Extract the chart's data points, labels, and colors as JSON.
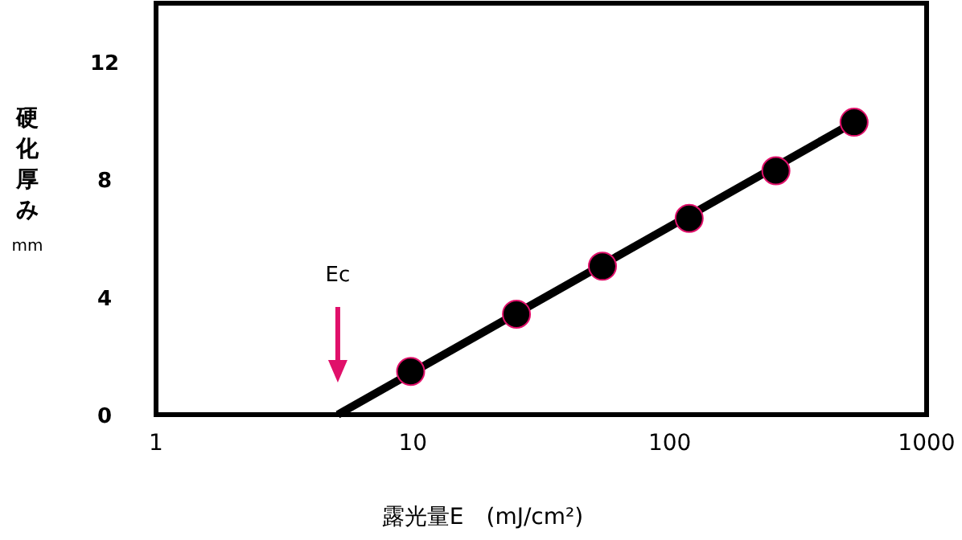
{
  "chart_data": {
    "type": "scatter",
    "xlabel": "露光量E　(mJ/cm²)",
    "ylabel": "硬化厚み mm",
    "log": "x",
    "xlim": [
      1,
      1000
    ],
    "xticks": [
      1,
      10,
      100,
      1000
    ],
    "ylim": [
      0,
      14
    ],
    "yticks": [
      0,
      4,
      8,
      12
    ],
    "grid": false,
    "series": [
      {
        "color": "#000000",
        "marker": "circle",
        "x": [
          9.8,
          25.3,
          54.7,
          119,
          259,
          522
        ],
        "values": [
          1.47,
          3.42,
          5.05,
          6.68,
          8.3,
          9.95
        ]
      },
      {
        "type": "line",
        "color": "#000000",
        "line_style": "solid",
        "x": [
          5.1,
          522
        ],
        "values": [
          0,
          9.95
        ]
      }
    ],
    "annotations": [
      "Ec"
    ]
  }
}
